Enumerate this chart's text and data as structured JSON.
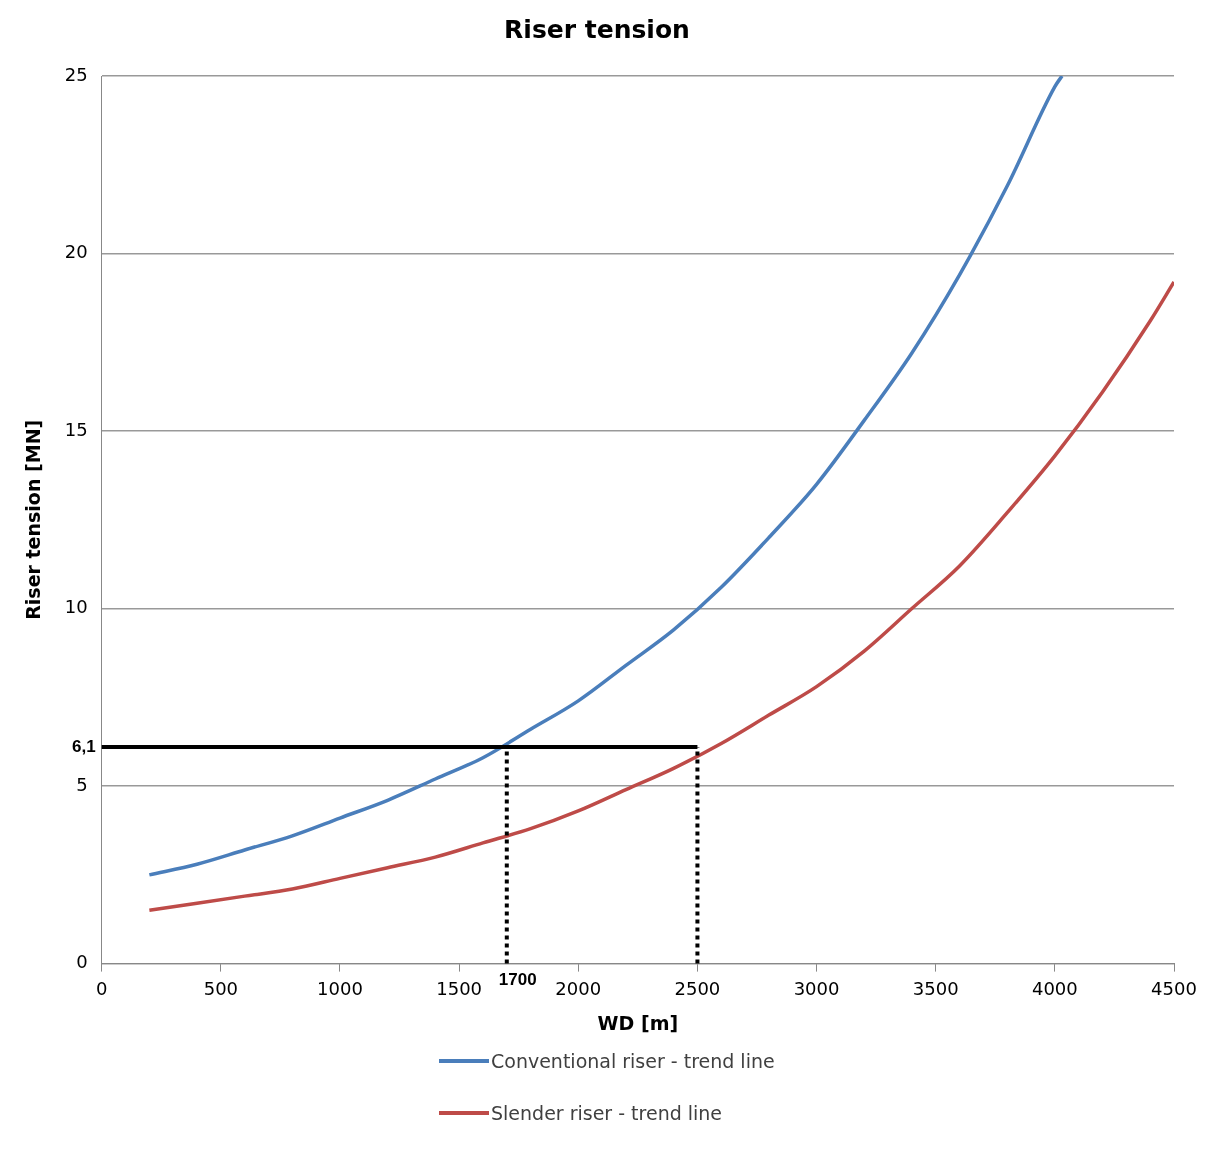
{
  "chart_data": {
    "type": "line",
    "title": "Riser tension",
    "xlabel": "WD [m]",
    "ylabel": "Riser tension [MN]",
    "xlim": [
      0,
      4500
    ],
    "xticks": [
      0,
      500,
      1000,
      1500,
      2000,
      2500,
      3000,
      3500,
      4000,
      4500
    ],
    "ylim": [
      0,
      25
    ],
    "yticks": [
      0,
      5,
      10,
      15,
      20,
      25
    ],
    "grid": "y",
    "legend": "bottom",
    "marker": "none",
    "line_style": "solid",
    "series": [
      {
        "name": "Conventional riser - trend line",
        "color": "#4a7ebb",
        "x": [
          200,
          400,
          600,
          800,
          1000,
          1200,
          1400,
          1600,
          1800,
          2000,
          2200,
          2400,
          2600,
          2800,
          3000,
          3200,
          3400,
          3600,
          3800,
          4000,
          4030
        ],
        "values": [
          2.5,
          2.8,
          3.2,
          3.6,
          4.1,
          4.6,
          5.2,
          5.8,
          6.6,
          7.4,
          8.4,
          9.4,
          10.6,
          12.0,
          13.5,
          15.3,
          17.2,
          19.4,
          21.9,
          24.7,
          25.0
        ]
      },
      {
        "name": "Slender riser - trend line",
        "color": "#be4b48",
        "x": [
          200,
          400,
          600,
          800,
          1000,
          1200,
          1400,
          1600,
          1800,
          2000,
          2200,
          2400,
          2600,
          2800,
          3000,
          3200,
          3400,
          3600,
          3800,
          4000,
          4200,
          4400,
          4500
        ],
        "values": [
          1.5,
          1.7,
          1.9,
          2.1,
          2.4,
          2.7,
          3.0,
          3.4,
          3.8,
          4.3,
          4.9,
          5.5,
          6.2,
          7.0,
          7.8,
          8.8,
          10.0,
          11.2,
          12.7,
          14.3,
          16.1,
          18.1,
          19.2
        ]
      }
    ],
    "ref_lines": [
      {
        "axis": "y",
        "value": 6.1,
        "label": "6,1",
        "color": "#000000",
        "line_style": "solid"
      },
      {
        "axis": "x",
        "value": 1700,
        "label": "1700",
        "color": "#000000",
        "line_style": "dotted"
      },
      {
        "axis": "x",
        "value": 2500,
        "label": null,
        "color": "#000000",
        "line_style": "dotted"
      }
    ]
  }
}
